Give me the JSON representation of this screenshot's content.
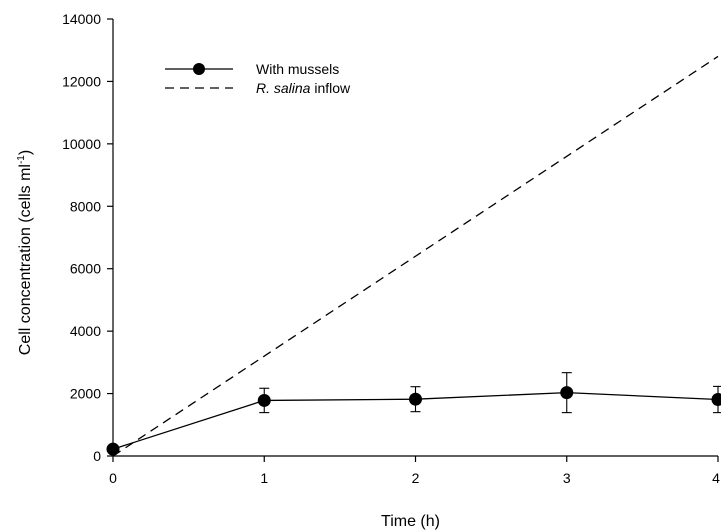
{
  "chart_data": {
    "type": "line",
    "xlabel": "Time (h)",
    "ylabel_main": "Cell concentration (cells ml",
    "ylabel_sup": "-1",
    "ylabel_close": ")",
    "xlim": [
      0,
      4
    ],
    "ylim": [
      0,
      14000
    ],
    "x_ticks": [
      0,
      1,
      2,
      3,
      4
    ],
    "x_tick_labels": [
      "0",
      "1",
      "2",
      "3",
      "4"
    ],
    "y_ticks": [
      0,
      2000,
      4000,
      6000,
      8000,
      10000,
      12000,
      14000
    ],
    "y_tick_labels": [
      "0",
      "2000",
      "4000",
      "6000",
      "8000",
      "10000",
      "12000",
      "14000"
    ],
    "grid": false,
    "legend_position": "top-left",
    "series": [
      {
        "name": "With mussels",
        "style": "solid-with-markers",
        "color": "#000000",
        "x": [
          0,
          1,
          2,
          3,
          4
        ],
        "y": [
          220,
          1780,
          1820,
          2030,
          1810
        ],
        "error": [
          0,
          390,
          400,
          640,
          420
        ]
      },
      {
        "name_italic": "R. salina",
        "name_rest": " inflow",
        "style": "dashed",
        "color": "#000000",
        "x": [
          0,
          4
        ],
        "y": [
          0,
          12800
        ]
      }
    ]
  }
}
